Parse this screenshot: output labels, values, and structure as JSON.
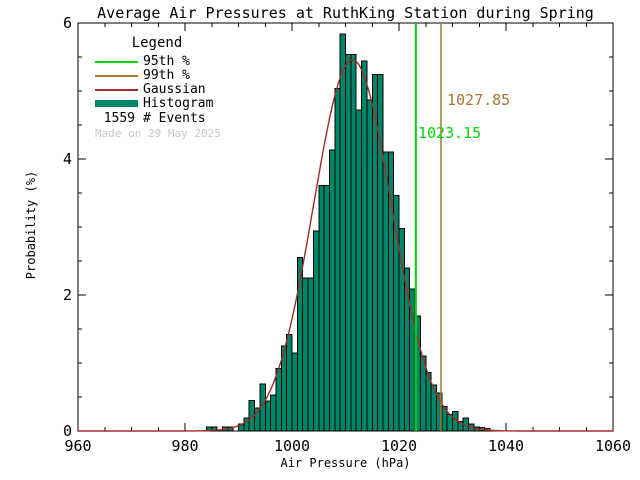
{
  "title": "Average Air Pressures at RuthKing Station during Spring",
  "axes": {
    "x": {
      "label": "Air Pressure (hPa)",
      "min": 960,
      "max": 1060,
      "major_ticks": [
        960,
        980,
        1000,
        1020,
        1040,
        1060
      ],
      "minor_step": 5
    },
    "y": {
      "label": "Probability (%)",
      "min": 0,
      "max": 6,
      "major_ticks": [
        0,
        2,
        4,
        6
      ],
      "minor_step": 0.5
    }
  },
  "legend": {
    "header": "Legend",
    "items": [
      {
        "label": "95th %",
        "color": "#00D900",
        "type": "line"
      },
      {
        "label": "99th %",
        "color": "#A8782F",
        "type": "line"
      },
      {
        "label": "Gaussian",
        "color": "#A52A2A",
        "type": "line"
      },
      {
        "label": "Histogram",
        "color": "#008769",
        "type": "swatch"
      }
    ],
    "events_count": "1559",
    "events_label": "# Events",
    "made_on": "Made on 29 May 2025",
    "made_on_color": "#C8C8C8"
  },
  "percentile_labels": {
    "p95": {
      "text": "1023.15",
      "color": "#00D900"
    },
    "p99": {
      "text": "1027.85",
      "color": "#A8782F"
    }
  },
  "colors": {
    "histogram_fill": "#008769",
    "bar_outline": "#000000",
    "gaussian_line": "#A52A2A",
    "p95_line": "#00D900",
    "p99_line": "#A8782F",
    "axis": "#000000",
    "background": "#FFFFFF"
  },
  "chart_data": {
    "type": "bar",
    "title": "Average Air Pressures at RuthKing Station during Spring",
    "xlabel": "Air Pressure (hPa)",
    "ylabel": "Probability (%)",
    "xlim": [
      960,
      1060
    ],
    "ylim": [
      0,
      6
    ],
    "grid": false,
    "n_events": 1559,
    "bin_unit": "hPa",
    "bin_width": 1,
    "bin_start": 984,
    "values": [
      0.06,
      0.06,
      0.0,
      0.06,
      0.06,
      0.0,
      0.1,
      0.19,
      0.45,
      0.34,
      0.69,
      0.44,
      0.53,
      0.92,
      1.25,
      1.42,
      1.15,
      2.55,
      2.25,
      2.25,
      2.94,
      3.61,
      3.61,
      4.13,
      5.04,
      5.84,
      5.54,
      5.54,
      4.72,
      5.44,
      4.87,
      5.24,
      5.24,
      4.1,
      4.1,
      3.46,
      2.98,
      2.4,
      2.09,
      1.69,
      1.1,
      0.86,
      0.68,
      0.56,
      0.36,
      0.24,
      0.29,
      0.14,
      0.19,
      0.1,
      0.06,
      0.05,
      0.04
    ],
    "gaussian_fit": {
      "mean": 1011.3,
      "sigma": 7.3,
      "peak_percent": 5.46
    },
    "vlines": [
      {
        "name": "95th percentile",
        "value": 1023.15
      },
      {
        "name": "99th percentile",
        "value": 1027.85
      }
    ]
  }
}
